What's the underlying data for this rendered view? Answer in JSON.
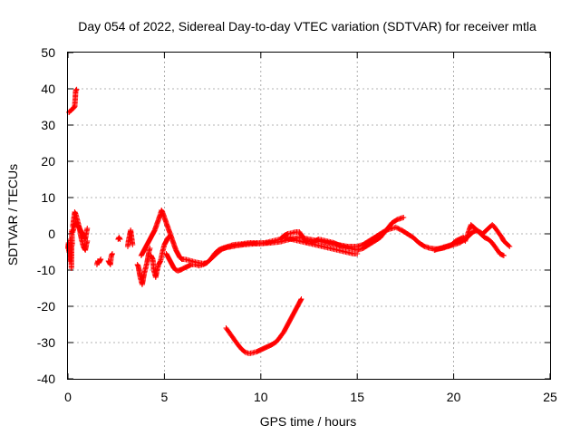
{
  "chart_data": {
    "type": "scatter",
    "title": "Day 054 of 2022, Sidereal Day-to-day VTEC variation (SDTVAR) for receiver mtla",
    "xlabel": "GPS time / hours",
    "ylabel": "SDTVAR / TECUs",
    "xlim": [
      0,
      25
    ],
    "ylim": [
      -40,
      50
    ],
    "grid": true,
    "xticks": [
      0,
      5,
      10,
      15,
      20,
      25
    ],
    "yticks": [
      -40,
      -30,
      -20,
      -10,
      0,
      10,
      20,
      30,
      40,
      50
    ],
    "marker": "plus",
    "series": [
      {
        "name": "SDTVAR",
        "color": "#ff0000",
        "segments": [
          [
            [
              0.05,
              33.5
            ],
            [
              0.1,
              33.8
            ],
            [
              0.15,
              34.0
            ],
            [
              0.2,
              34.3
            ],
            [
              0.25,
              34.5
            ],
            [
              0.3,
              34.8
            ],
            [
              0.35,
              35.1
            ],
            [
              0.38,
              37.5
            ],
            [
              0.4,
              39.5
            ],
            [
              0.45,
              39.8
            ]
          ],
          [
            [
              0.0,
              -4.0
            ],
            [
              0.03,
              -2.5
            ],
            [
              0.05,
              -5.0
            ],
            [
              0.08,
              -3.0
            ],
            [
              0.1,
              -7.5
            ],
            [
              0.12,
              -1.5
            ],
            [
              0.15,
              -5.5
            ],
            [
              0.18,
              -9.5
            ],
            [
              0.2,
              1.0
            ],
            [
              0.22,
              -3.0
            ]
          ],
          [
            [
              0.25,
              2.0
            ],
            [
              0.3,
              4.0
            ],
            [
              0.35,
              6.0
            ],
            [
              0.4,
              5.5
            ],
            [
              0.45,
              4.5
            ],
            [
              0.5,
              3.5
            ],
            [
              0.55,
              2.5
            ],
            [
              0.6,
              1.5
            ],
            [
              0.65,
              0.0
            ],
            [
              0.7,
              -1.5
            ],
            [
              0.75,
              -2.5
            ],
            [
              0.8,
              -3.5
            ],
            [
              0.85,
              -4.0
            ],
            [
              0.9,
              -4.5
            ],
            [
              0.95,
              -3.0
            ],
            [
              1.0,
              -2.0
            ]
          ],
          [
            [
              0.25,
              0.5
            ],
            [
              0.3,
              1.5
            ],
            [
              0.35,
              2.5
            ],
            [
              0.4,
              3.0
            ],
            [
              0.5,
              2.5
            ],
            [
              0.6,
              1.5
            ],
            [
              0.7,
              0.5
            ],
            [
              0.8,
              -0.5
            ],
            [
              0.9,
              -1.5
            ],
            [
              1.0,
              1.5
            ]
          ],
          [
            [
              1.5,
              -8.5
            ],
            [
              1.55,
              -7.5
            ],
            [
              1.6,
              -8.0
            ],
            [
              1.7,
              -7.0
            ]
          ],
          [
            [
              2.1,
              -7.5
            ],
            [
              2.15,
              -8.0
            ],
            [
              2.2,
              -8.5
            ],
            [
              2.25,
              -6.0
            ],
            [
              2.3,
              -5.5
            ]
          ],
          [
            [
              2.6,
              -1.5
            ],
            [
              2.65,
              -1.0
            ],
            [
              2.7,
              -1.5
            ]
          ],
          [
            [
              3.1,
              -3.5
            ],
            [
              3.15,
              -1.5
            ],
            [
              3.2,
              -0.5
            ],
            [
              3.25,
              1.0
            ],
            [
              3.3,
              -1.0
            ],
            [
              3.35,
              -3.0
            ]
          ],
          [
            [
              3.6,
              -8.5
            ],
            [
              3.65,
              -9.0
            ],
            [
              3.7,
              -10.5
            ],
            [
              3.75,
              -12.0
            ],
            [
              3.8,
              -13.0
            ],
            [
              3.85,
              -14.0
            ],
            [
              3.9,
              -12.5
            ],
            [
              3.95,
              -11.0
            ],
            [
              4.0,
              -10.0
            ],
            [
              4.05,
              -9.0
            ],
            [
              4.1,
              -8.0
            ],
            [
              4.15,
              -6.5
            ],
            [
              4.2,
              -5.0
            ],
            [
              4.25,
              -4.0
            ]
          ],
          [
            [
              3.8,
              -6.0
            ],
            [
              3.9,
              -5.0
            ],
            [
              4.0,
              -4.0
            ],
            [
              4.1,
              -3.0
            ],
            [
              4.2,
              -2.0
            ],
            [
              4.3,
              -1.0
            ],
            [
              4.4,
              0.0
            ],
            [
              4.5,
              1.0
            ],
            [
              4.6,
              2.5
            ],
            [
              4.7,
              4.0
            ],
            [
              4.8,
              5.5
            ],
            [
              4.85,
              6.5
            ],
            [
              4.9,
              6.0
            ],
            [
              5.0,
              4.5
            ],
            [
              5.1,
              3.0
            ],
            [
              5.2,
              1.5
            ],
            [
              5.3,
              0.0
            ],
            [
              5.4,
              -1.5
            ],
            [
              5.5,
              -3.0
            ],
            [
              5.6,
              -4.5
            ],
            [
              5.7,
              -5.5
            ],
            [
              5.8,
              -6.5
            ],
            [
              5.9,
              -7.0
            ],
            [
              6.0,
              -7.0
            ],
            [
              6.2,
              -7.2
            ],
            [
              6.4,
              -7.5
            ],
            [
              6.6,
              -7.8
            ],
            [
              6.8,
              -8.0
            ],
            [
              7.0,
              -8.2
            ],
            [
              7.2,
              -8.0
            ],
            [
              7.4,
              -7.0
            ],
            [
              7.6,
              -6.0
            ],
            [
              7.8,
              -5.0
            ],
            [
              8.0,
              -4.2
            ],
            [
              8.2,
              -3.8
            ],
            [
              8.5,
              -3.5
            ],
            [
              8.8,
              -3.2
            ],
            [
              9.1,
              -3.0
            ],
            [
              9.5,
              -2.8
            ],
            [
              10.0,
              -2.7
            ],
            [
              10.5,
              -2.5
            ],
            [
              11.0,
              -2.2
            ],
            [
              11.5,
              -1.5
            ],
            [
              12.0,
              -1.0
            ],
            [
              12.5,
              -1.5
            ],
            [
              13.0,
              -2.0
            ],
            [
              13.5,
              -2.5
            ],
            [
              14.0,
              -3.0
            ],
            [
              14.5,
              -3.5
            ],
            [
              15.0,
              -3.5
            ],
            [
              15.3,
              -3.0
            ],
            [
              15.6,
              -2.0
            ],
            [
              15.9,
              -1.0
            ],
            [
              16.2,
              0.0
            ],
            [
              16.5,
              1.0
            ],
            [
              16.8,
              1.5
            ],
            [
              17.0,
              1.8
            ],
            [
              17.3,
              1.0
            ],
            [
              17.6,
              0.0
            ],
            [
              17.9,
              -1.0
            ],
            [
              18.2,
              -2.5
            ],
            [
              18.5,
              -3.5
            ],
            [
              18.8,
              -4.0
            ],
            [
              19.1,
              -4.2
            ],
            [
              19.4,
              -4.0
            ],
            [
              19.7,
              -3.5
            ],
            [
              20.0,
              -3.0
            ],
            [
              20.3,
              -2.5
            ],
            [
              20.6,
              -1.5
            ],
            [
              20.8,
              -0.5
            ],
            [
              21.0,
              0.5
            ],
            [
              21.2,
              1.0
            ],
            [
              21.4,
              0.0
            ],
            [
              21.6,
              -1.0
            ],
            [
              21.8,
              -1.5
            ],
            [
              22.0,
              -2.5
            ],
            [
              22.2,
              -4.0
            ],
            [
              22.4,
              -5.5
            ],
            [
              22.6,
              -6.0
            ]
          ],
          [
            [
              4.3,
              -6.0
            ],
            [
              4.4,
              -7.0
            ],
            [
              4.45,
              -10.0
            ],
            [
              4.5,
              -11.0
            ],
            [
              4.55,
              -12.0
            ],
            [
              4.6,
              -10.5
            ],
            [
              4.7,
              -8.5
            ],
            [
              4.8,
              -7.5
            ],
            [
              4.9,
              -5.0
            ],
            [
              5.0,
              -3.0
            ],
            [
              5.1,
              -2.0
            ],
            [
              5.2,
              -1.0
            ],
            [
              5.3,
              -0.5
            ]
          ],
          [
            [
              5.1,
              -5.5
            ],
            [
              5.2,
              -6.5
            ],
            [
              5.3,
              -7.5
            ],
            [
              5.4,
              -8.5
            ],
            [
              5.5,
              -9.5
            ],
            [
              5.6,
              -10.0
            ],
            [
              5.7,
              -10.2
            ],
            [
              5.8,
              -10.0
            ],
            [
              5.9,
              -9.8
            ],
            [
              6.0,
              -9.5
            ],
            [
              6.2,
              -9.0
            ],
            [
              6.4,
              -8.5
            ],
            [
              6.6,
              -8.5
            ],
            [
              6.8,
              -8.8
            ],
            [
              7.0,
              -8.5
            ],
            [
              7.2,
              -8.0
            ],
            [
              7.4,
              -7.0
            ],
            [
              7.6,
              -5.5
            ],
            [
              7.8,
              -4.5
            ],
            [
              8.0,
              -4.0
            ],
            [
              8.3,
              -3.5
            ],
            [
              8.6,
              -3.0
            ],
            [
              9.0,
              -2.8
            ],
            [
              9.4,
              -2.5
            ],
            [
              9.8,
              -2.5
            ],
            [
              10.2,
              -2.5
            ],
            [
              10.6,
              -2.0
            ],
            [
              11.0,
              -1.5
            ],
            [
              11.2,
              -0.5
            ],
            [
              11.4,
              0.0
            ],
            [
              11.6,
              0.2
            ],
            [
              11.8,
              0.5
            ],
            [
              12.0,
              0.5
            ],
            [
              12.2,
              -1.0
            ],
            [
              12.4,
              -2.5
            ],
            [
              12.6,
              -2.5
            ],
            [
              12.8,
              -2.0
            ],
            [
              13.0,
              -1.5
            ],
            [
              13.4,
              -2.0
            ],
            [
              13.8,
              -2.5
            ],
            [
              14.2,
              -3.5
            ],
            [
              14.6,
              -4.0
            ],
            [
              15.0,
              -4.5
            ],
            [
              15.3,
              -4.0
            ],
            [
              15.6,
              -3.0
            ],
            [
              15.9,
              -2.0
            ],
            [
              16.2,
              -1.0
            ],
            [
              16.5,
              1.0
            ],
            [
              16.8,
              3.0
            ],
            [
              17.1,
              4.0
            ],
            [
              17.4,
              4.5
            ]
          ],
          [
            [
              11.2,
              -1.0
            ],
            [
              11.6,
              -1.5
            ],
            [
              12.0,
              -2.0
            ],
            [
              12.4,
              -2.5
            ],
            [
              12.8,
              -3.0
            ],
            [
              13.2,
              -3.5
            ],
            [
              13.6,
              -4.0
            ],
            [
              14.0,
              -4.5
            ],
            [
              14.4,
              -5.0
            ],
            [
              14.8,
              -5.5
            ],
            [
              15.0,
              -5.5
            ]
          ],
          [
            [
              19.0,
              -4.5
            ],
            [
              19.3,
              -4.0
            ],
            [
              19.6,
              -3.5
            ],
            [
              19.9,
              -3.0
            ],
            [
              20.1,
              -2.0
            ],
            [
              20.3,
              -1.5
            ],
            [
              20.5,
              -1.0
            ],
            [
              20.6,
              -2.0
            ],
            [
              20.8,
              1.0
            ],
            [
              20.9,
              2.5
            ],
            [
              21.0,
              2.0
            ],
            [
              21.2,
              1.0
            ],
            [
              21.5,
              0.0
            ],
            [
              21.7,
              1.0
            ],
            [
              21.9,
              2.0
            ],
            [
              22.0,
              2.5
            ],
            [
              22.1,
              2.0
            ],
            [
              22.3,
              0.5
            ],
            [
              22.5,
              -1.0
            ],
            [
              22.6,
              -2.0
            ],
            [
              22.8,
              -3.0
            ],
            [
              22.9,
              -3.5
            ]
          ],
          [
            [
              8.2,
              -26.0
            ],
            [
              8.4,
              -27.5
            ],
            [
              8.6,
              -29.0
            ],
            [
              8.8,
              -30.5
            ],
            [
              9.0,
              -31.8
            ],
            [
              9.2,
              -32.7
            ],
            [
              9.4,
              -33.0
            ],
            [
              9.6,
              -32.8
            ],
            [
              9.8,
              -32.5
            ],
            [
              10.0,
              -32.0
            ],
            [
              10.2,
              -31.5
            ],
            [
              10.4,
              -31.0
            ],
            [
              10.6,
              -30.5
            ],
            [
              10.8,
              -29.8
            ],
            [
              11.0,
              -28.5
            ],
            [
              11.2,
              -27.0
            ],
            [
              11.4,
              -25.0
            ],
            [
              11.6,
              -23.0
            ],
            [
              11.8,
              -21.0
            ],
            [
              12.0,
              -19.0
            ],
            [
              12.1,
              -18.0
            ]
          ]
        ]
      }
    ]
  }
}
